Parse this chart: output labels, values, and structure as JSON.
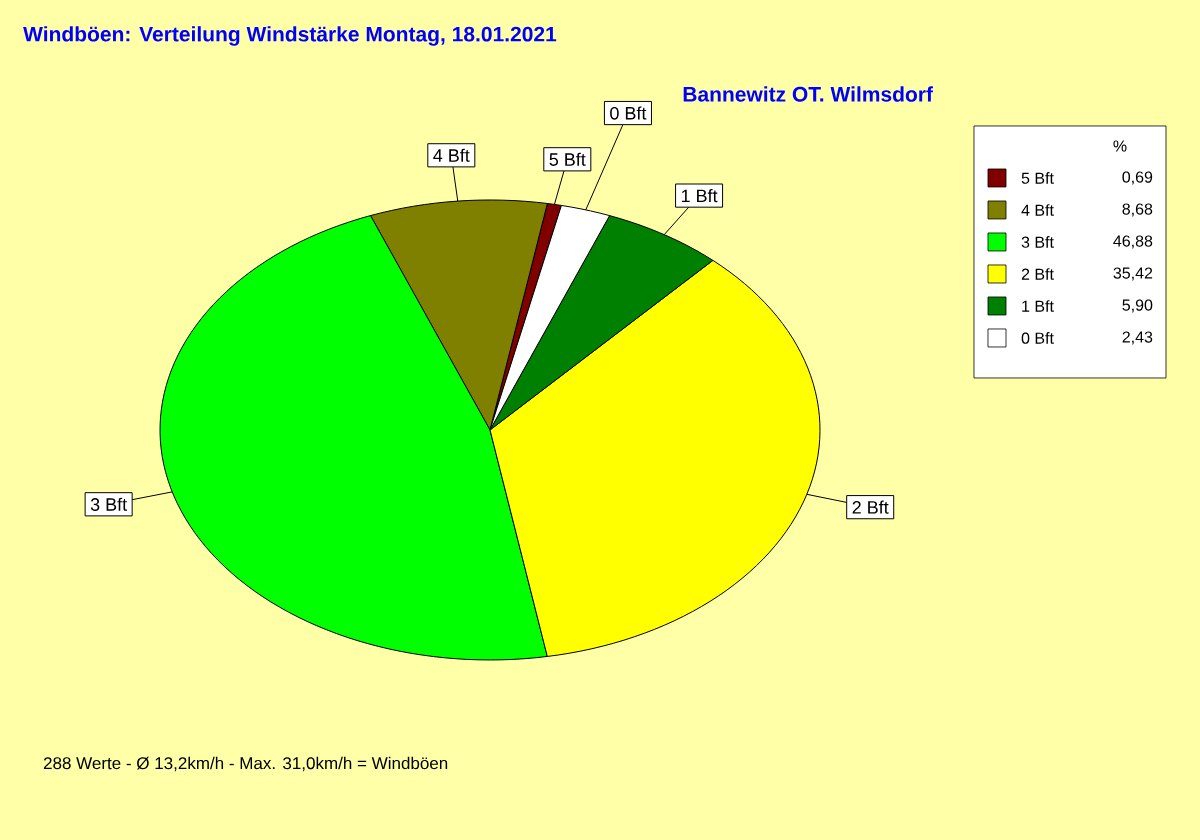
{
  "chart_data": {
    "type": "pie",
    "title": "Windböen: Verteilung Windstärke  Montag, 18.01.2021",
    "subtitle": "Bannewitz OT. Wilmsdorf",
    "categories": [
      "5 Bft",
      "4 Bft",
      "3 Bft",
      "2 Bft",
      "1 Bft",
      "0 Bft"
    ],
    "values": [
      0.69,
      8.68,
      46.88,
      35.42,
      5.9,
      2.43
    ],
    "value_labels": [
      "0,69",
      "8,68",
      "46,88",
      "35,42",
      "5,90",
      "2,43"
    ],
    "colors": [
      "#800000",
      "#808000",
      "#00ff00",
      "#ffff00",
      "#008000",
      "#ffffff"
    ],
    "legend_title": "%",
    "legend": "top right",
    "annotations": [
      "288 Werte   -   Ø 13,2km/h  -  Max. 31,0km/h = Windböen"
    ]
  }
}
